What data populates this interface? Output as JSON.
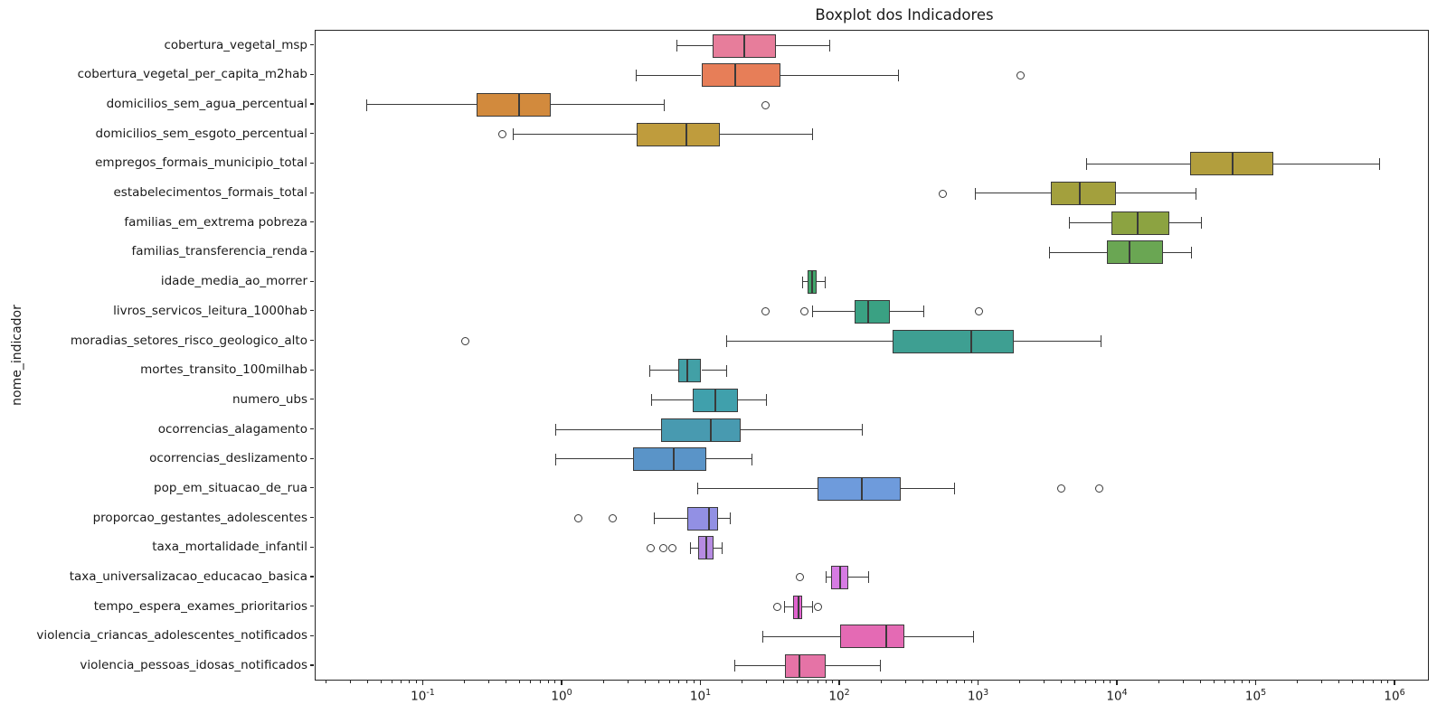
{
  "chart_data": {
    "type": "boxplot",
    "orientation": "horizontal",
    "title": "Boxplot dos Indicadores",
    "xlabel": "",
    "ylabel": "nome_indicador",
    "x_scale": "log",
    "xlim": [
      0.0166,
      1770000
    ],
    "x_tick_exponents": [
      -1,
      0,
      1,
      2,
      3,
      4,
      5,
      6
    ],
    "grid": false,
    "legend": "none",
    "boxes": [
      {
        "label": "cobertura_vegetal_msp",
        "whisker_low": 6.7,
        "q1": 12,
        "median": 20.4,
        "q3": 34.4,
        "whisker_high": 85,
        "outliers": [],
        "color": "#e77d9b"
      },
      {
        "label": "cobertura_vegetal_per_capita_m2hab",
        "whisker_low": 3.4,
        "q1": 10,
        "median": 17.5,
        "q3": 37,
        "whisker_high": 265,
        "outliers": [
          2000
        ],
        "color": "#e77e58"
      },
      {
        "label": "domicilios_sem_agua_percentual",
        "whisker_low": 0.039,
        "q1": 0.24,
        "median": 0.49,
        "q3": 0.82,
        "whisker_high": 5.4,
        "outliers": [
          29
        ],
        "color": "#d28a3d"
      },
      {
        "label": "domicilios_sem_esgoto_percentual",
        "whisker_low": 0.44,
        "q1": 3.4,
        "median": 7.8,
        "q3": 13.6,
        "whisker_high": 64,
        "outliers": [
          0.37
        ],
        "color": "#bf9c3d"
      },
      {
        "label": "empregos_formais_municipio_total",
        "whisker_low": 6000,
        "q1": 33000,
        "median": 67000,
        "q3": 132000,
        "whisker_high": 775000,
        "outliers": [],
        "color": "#b29e3d"
      },
      {
        "label": "estabelecimentos_formais_total",
        "whisker_low": 950,
        "q1": 3300,
        "median": 5300,
        "q3": 9700,
        "whisker_high": 37000,
        "outliers": [
          550
        ],
        "color": "#a3a03d"
      },
      {
        "label": "familias_em_extrema pobreza",
        "whisker_low": 4500,
        "q1": 9000,
        "median": 14000,
        "q3": 23500,
        "whisker_high": 40000,
        "outliers": [],
        "color": "#8ca341"
      },
      {
        "label": "familias_transferencia_renda",
        "whisker_low": 3250,
        "q1": 8400,
        "median": 12200,
        "q3": 21200,
        "whisker_high": 34200,
        "outliers": [],
        "color": "#6aa653"
      },
      {
        "label": "idade_media_ao_morrer",
        "whisker_low": 54,
        "q1": 58,
        "median": 63,
        "q3": 68,
        "whisker_high": 78,
        "outliers": [],
        "color": "#41a56a"
      },
      {
        "label": "livros_servicos_leitura_1000hab",
        "whisker_low": 64,
        "q1": 127,
        "median": 160,
        "q3": 228,
        "whisker_high": 400,
        "outliers": [
          29,
          55,
          1000
        ],
        "color": "#3aa183"
      },
      {
        "label": "moradias_setores_risco_geologico_alto",
        "whisker_low": 15.3,
        "q1": 240,
        "median": 880,
        "q3": 1780,
        "whisker_high": 7600,
        "outliers": [
          0.2
        ],
        "color": "#3e9f92"
      },
      {
        "label": "mortes_transito_100milhab",
        "whisker_low": 4.3,
        "q1": 6.8,
        "median": 7.9,
        "q3": 10,
        "whisker_high": 15.3,
        "outliers": [],
        "color": "#42a0a6"
      },
      {
        "label": "numero_ubs",
        "whisker_low": 4.4,
        "q1": 8.7,
        "median": 12.6,
        "q3": 18.4,
        "whisker_high": 29.6,
        "outliers": [],
        "color": "#40a0ac"
      },
      {
        "label": "ocorrencias_alagamento",
        "whisker_low": 0.9,
        "q1": 5.1,
        "median": 11.7,
        "q3": 19.2,
        "whisker_high": 145,
        "outliers": [],
        "color": "#489ab0"
      },
      {
        "label": "ocorrencias_deslizamento",
        "whisker_low": 0.9,
        "q1": 3.2,
        "median": 6.3,
        "q3": 10.9,
        "whisker_high": 23.3,
        "outliers": [],
        "color": "#5a94c8"
      },
      {
        "label": "pop_em_situacao_de_rua",
        "whisker_low": 9.4,
        "q1": 69,
        "median": 143,
        "q3": 273,
        "whisker_high": 670,
        "outliers": [
          3900,
          7400
        ],
        "color": "#6e9bdc"
      },
      {
        "label": "proporcao_gestantes_adolescentes",
        "whisker_low": 4.6,
        "q1": 7.9,
        "median": 11.4,
        "q3": 13.2,
        "whisker_high": 16.3,
        "outliers": [
          1.3,
          2.3
        ],
        "color": "#9290e4"
      },
      {
        "label": "taxa_mortalidade_infantil",
        "whisker_low": 8.4,
        "q1": 9.5,
        "median": 10.9,
        "q3": 12.2,
        "whisker_high": 14.2,
        "outliers": [
          4.3,
          5.3,
          6.2
        ],
        "color": "#b68be2"
      },
      {
        "label": "taxa_universalizacao_educacao_basica",
        "whisker_low": 79,
        "q1": 86,
        "median": 100,
        "q3": 115,
        "whisker_high": 160,
        "outliers": [
          51
        ],
        "color": "#d67be3"
      },
      {
        "label": "tempo_espera_exames_prioritarios",
        "whisker_low": 40,
        "q1": 46,
        "median": 50,
        "q3": 53,
        "whisker_high": 64,
        "outliers": [
          35.5,
          69
        ],
        "color": "#e163cf"
      },
      {
        "label": "violencia_criancas_adolescentes_notificados",
        "whisker_low": 28,
        "q1": 100,
        "median": 215,
        "q3": 290,
        "whisker_high": 920,
        "outliers": [],
        "color": "#e46ab4"
      },
      {
        "label": "violencia_pessoas_idosas_notificados",
        "whisker_low": 17.5,
        "q1": 40,
        "median": 51,
        "q3": 79,
        "whisker_high": 196,
        "outliers": [],
        "color": "#e573a6"
      }
    ]
  }
}
